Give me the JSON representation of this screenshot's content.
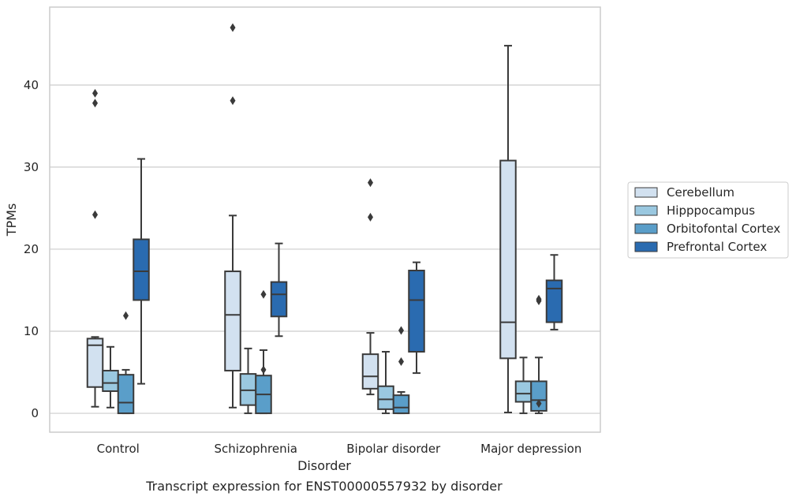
{
  "chart_data": {
    "type": "box",
    "title": "",
    "caption": "Transcript expression for ENST00000557932 by disorder",
    "xlabel": "Disorder",
    "ylabel": "TPMs",
    "ylim": [
      -2.3,
      49.5
    ],
    "yticks": [
      0,
      10,
      20,
      30,
      40
    ],
    "grid": "horizontal",
    "legend_position": "right",
    "categories": [
      "Control",
      "Schizophrenia",
      "Bipolar disorder",
      "Major depression"
    ],
    "series": [
      {
        "name": "Cerebellum",
        "color": "#d2e1f0",
        "boxes": [
          {
            "whisker_low": 0.8,
            "q1": 3.2,
            "median": 8.3,
            "q3": 9.1,
            "whisker_high": 9.3,
            "outliers": [
              24.2,
              37.8,
              39.0
            ]
          },
          {
            "whisker_low": 0.7,
            "q1": 5.2,
            "median": 12.0,
            "q3": 17.3,
            "whisker_high": 24.1,
            "outliers": [
              38.1,
              47.0
            ]
          },
          {
            "whisker_low": 2.3,
            "q1": 3.0,
            "median": 4.5,
            "q3": 7.2,
            "whisker_high": 9.8,
            "outliers": [
              23.9,
              28.1
            ]
          },
          {
            "whisker_low": 0.1,
            "q1": 6.7,
            "median": 11.1,
            "q3": 30.8,
            "whisker_high": 44.8,
            "outliers": []
          }
        ]
      },
      {
        "name": "Hipppocampus",
        "color": "#9ac8e0",
        "boxes": [
          {
            "whisker_low": 0.7,
            "q1": 2.7,
            "median": 3.7,
            "q3": 5.2,
            "whisker_high": 8.1,
            "outliers": []
          },
          {
            "whisker_low": 0.0,
            "q1": 1.0,
            "median": 2.8,
            "q3": 4.8,
            "whisker_high": 7.9,
            "outliers": []
          },
          {
            "whisker_low": 0.0,
            "q1": 0.5,
            "median": 1.7,
            "q3": 3.3,
            "whisker_high": 7.5,
            "outliers": []
          },
          {
            "whisker_low": 0.0,
            "q1": 1.4,
            "median": 2.4,
            "q3": 3.9,
            "whisker_high": 6.8,
            "outliers": []
          }
        ]
      },
      {
        "name": "Orbitofontal Cortex",
        "color": "#5a9ec9",
        "boxes": [
          {
            "whisker_low": 0.0,
            "q1": 0.0,
            "median": 1.3,
            "q3": 4.7,
            "whisker_high": 5.3,
            "outliers": [
              11.9
            ]
          },
          {
            "whisker_low": 0.0,
            "q1": 0.0,
            "median": 2.3,
            "q3": 4.6,
            "whisker_high": 7.7,
            "outliers": [
              14.5,
              5.3
            ]
          },
          {
            "whisker_low": 0.0,
            "q1": 0.0,
            "median": 0.7,
            "q3": 2.2,
            "whisker_high": 2.6,
            "outliers": [
              6.3,
              10.1
            ]
          },
          {
            "whisker_low": 0.0,
            "q1": 0.3,
            "median": 1.6,
            "q3": 3.9,
            "whisker_high": 6.8,
            "outliers": [
              13.7,
              13.9,
              1.2
            ]
          }
        ]
      },
      {
        "name": "Prefrontal Cortex",
        "color": "#2a6bb0",
        "boxes": [
          {
            "whisker_low": 3.6,
            "q1": 13.8,
            "median": 17.3,
            "q3": 21.2,
            "whisker_high": 31.0,
            "outliers": []
          },
          {
            "whisker_low": 9.4,
            "q1": 11.8,
            "median": 14.5,
            "q3": 16.0,
            "whisker_high": 20.7,
            "outliers": []
          },
          {
            "whisker_low": 4.9,
            "q1": 7.5,
            "median": 13.8,
            "q3": 17.4,
            "whisker_high": 18.4,
            "outliers": []
          },
          {
            "whisker_low": 10.2,
            "q1": 11.1,
            "median": 15.2,
            "q3": 16.2,
            "whisker_high": 19.3,
            "outliers": []
          }
        ]
      }
    ]
  }
}
